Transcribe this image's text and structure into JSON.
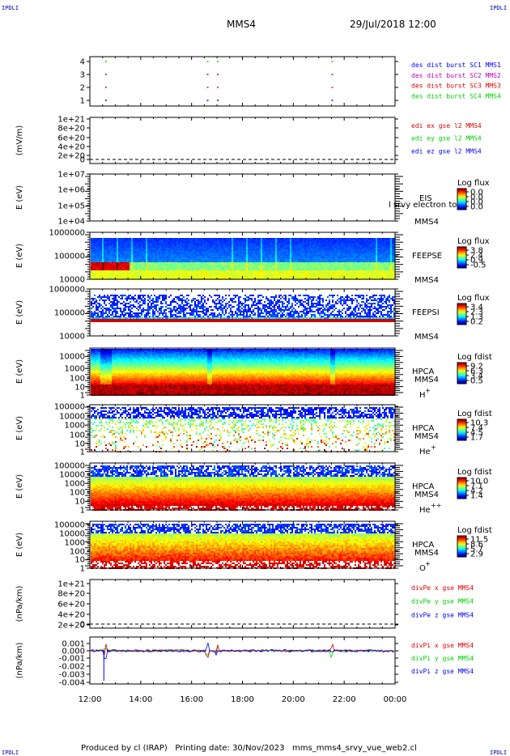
{
  "header": {
    "title": "MMS4",
    "date": "29/Jul/2018 12:00",
    "corner_label": "IPDLI"
  },
  "footer": {
    "text": "Produced by cl (IRAP)   Printing date: 30/Nov/2023   mms_mms4_srvy_vue_web2.cl"
  },
  "colors": {
    "red": "#e00000",
    "green": "#00d000",
    "blue": "#0000ff",
    "magenta": "#c000c0",
    "black": "#000000"
  },
  "chart_data": {
    "type": "heatmap",
    "x_ticks": [
      "12:00",
      "14:00",
      "16:00",
      "18:00",
      "20:00",
      "22:00",
      "00:00"
    ],
    "panels": [
      {
        "id": "burst",
        "ylabel": "",
        "yticks": [
          "4",
          "3",
          "2",
          "1"
        ],
        "legend": [
          {
            "text": "des dist burst SC1 MMS1",
            "color": "blue"
          },
          {
            "text": "des dist burst SC2 MMS2",
            "color": "magenta"
          },
          {
            "text": "des dist burst SC3 MMS3",
            "color": "red"
          },
          {
            "text": "des dist burst SC4 MMS4",
            "color": "green"
          }
        ],
        "bursts_hours": [
          12.6,
          16.6,
          17.0,
          21.5
        ]
      },
      {
        "id": "edi",
        "ylabel": "(mV/m)",
        "yticks": [
          "1e+21",
          "8e+20",
          "6e+20",
          "4e+20",
          "2e+20",
          "0"
        ],
        "legend": [
          {
            "text": "edi ex gse l2 MMS4",
            "color": "red"
          },
          {
            "text": "edi ey gse l2 MMS4",
            "color": "green"
          },
          {
            "text": "edi ez gse l2 MMS4",
            "color": "blue"
          }
        ]
      },
      {
        "id": "eis",
        "ylabel": "E (eV)",
        "yticks": [
          "1e+07",
          "1e+06",
          "1e+05",
          "1e+04"
        ],
        "instrument": "EIS",
        "sc": "MMS4",
        "overlay": "l srvy electron to",
        "cbar_title": "Log flux",
        "cbar_ticks": [
          "0.0",
          "0.0",
          "0.0",
          "0.0"
        ]
      },
      {
        "id": "feepse",
        "ylabel": "E (eV)",
        "yticks": [
          "1000000",
          "100000",
          "10000"
        ],
        "instrument": "FEEPSE",
        "sc": "MMS4",
        "cbar_title": "Log flux",
        "cbar_ticks": [
          "3.8",
          "2.4",
          "0.9",
          "-0.5"
        ]
      },
      {
        "id": "feepsi",
        "ylabel": "E (eV)",
        "yticks": [
          "1000000",
          "100000",
          "10000"
        ],
        "instrument": "FEEPSI",
        "sc": "MMS4",
        "cbar_title": "Log flux",
        "cbar_ticks": [
          "3.4",
          "2.3",
          "1.3",
          "0.2"
        ]
      },
      {
        "id": "hpca_h",
        "ylabel": "E (eV)",
        "yticks": [
          "10000",
          "1000",
          "100",
          "10",
          "1"
        ],
        "instrument": "HPCA",
        "sc": "MMS4",
        "species": "H",
        "charge": "+",
        "cbar_title": "Log fdist",
        "cbar_ticks": [
          "9.2",
          "6.3",
          "3.4",
          "0.5"
        ]
      },
      {
        "id": "hpca_he",
        "ylabel": "E (eV)",
        "yticks": [
          "100000",
          "10000",
          "1000",
          "100",
          "10",
          "1"
        ],
        "instrument": "HPCA",
        "sc": "MMS4",
        "species": "He",
        "charge": "+",
        "cbar_title": "Log fdist",
        "cbar_ticks": [
          "10.3",
          "7.4",
          "4.5",
          "1.7"
        ]
      },
      {
        "id": "hpca_hepp",
        "ylabel": "E (eV)",
        "yticks": [
          "100000",
          "10000",
          "1000",
          "100",
          "10",
          "1"
        ],
        "instrument": "HPCA",
        "sc": "MMS4",
        "species": "He",
        "charge": "++",
        "cbar_title": "Log fdist",
        "cbar_ticks": [
          "10.0",
          "7.1",
          "4.2",
          "1.4"
        ]
      },
      {
        "id": "hpca_o",
        "ylabel": "E (eV)",
        "yticks": [
          "100000",
          "10000",
          "1000",
          "100",
          "10",
          "1"
        ],
        "instrument": "HPCA",
        "sc": "MMS4",
        "species": "O",
        "charge": "+",
        "cbar_title": "Log fdist",
        "cbar_ticks": [
          "11.5",
          "8.6",
          "5.7",
          "2.9"
        ]
      },
      {
        "id": "divpe",
        "ylabel": "(nPa/km)",
        "yticks": [
          "1e+21",
          "8e+20",
          "6e+20",
          "4e+20",
          "2e+20",
          "0"
        ],
        "legend": [
          {
            "text": "divPe x gse MMS4",
            "color": "red"
          },
          {
            "text": "divPe y gse MMS4",
            "color": "green"
          },
          {
            "text": "divPe z gse MMS4",
            "color": "blue"
          }
        ]
      },
      {
        "id": "divpi",
        "ylabel": "(nPa/km)",
        "yticks": [
          "0.001",
          "0.000",
          "-0.001",
          "-0.002",
          "-0.003",
          "-0.004"
        ],
        "ylim": [
          -0.0045,
          0.0015
        ],
        "legend": [
          {
            "text": "divPi x gse MMS4",
            "color": "red"
          },
          {
            "text": "divPi y gse MMS4",
            "color": "green"
          },
          {
            "text": "divPi z gse MMS4",
            "color": "blue"
          }
        ]
      }
    ]
  }
}
